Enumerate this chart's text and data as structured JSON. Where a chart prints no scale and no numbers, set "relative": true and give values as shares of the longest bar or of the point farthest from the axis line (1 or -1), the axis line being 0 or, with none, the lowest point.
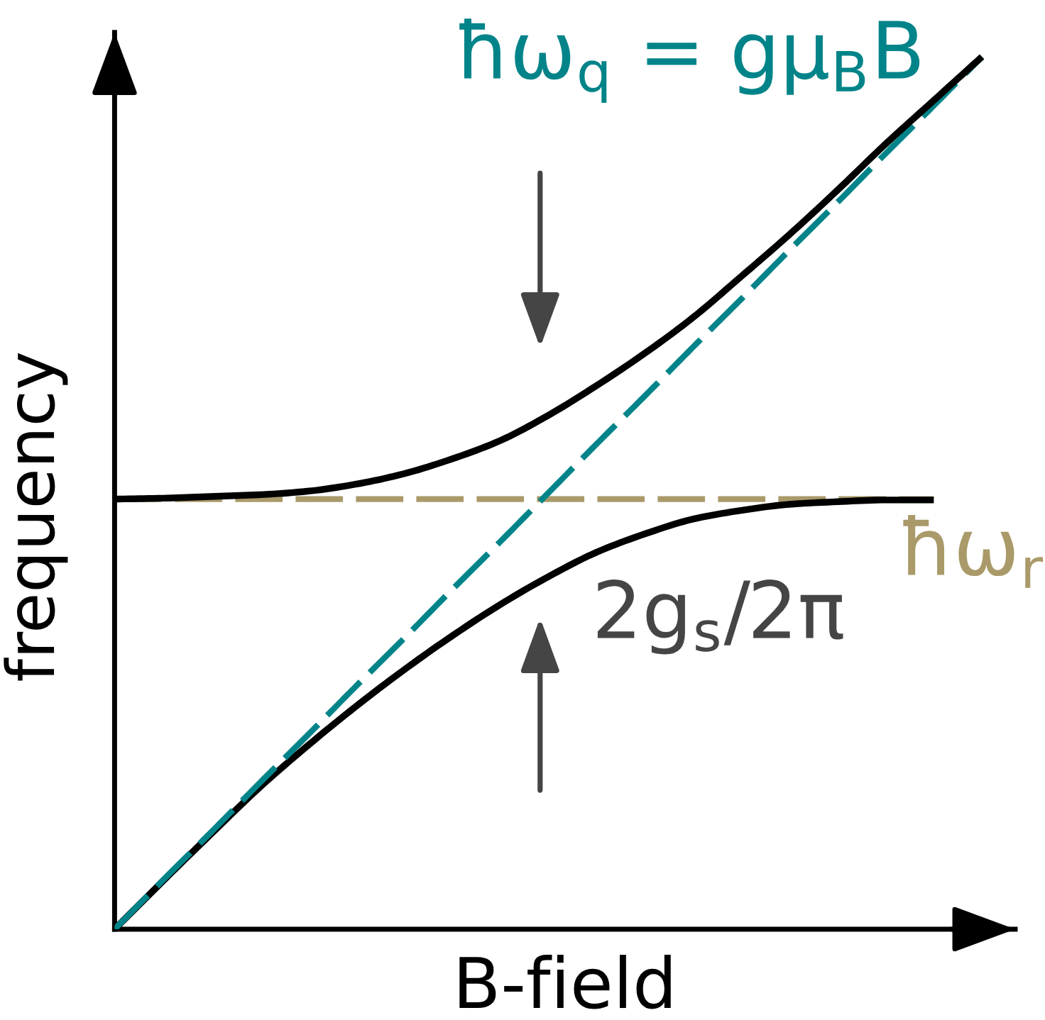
{
  "chart_data": {
    "type": "line",
    "relative": true,
    "tick_labels": false,
    "xlabel": "B-field",
    "ylabel": "frequency",
    "categories": [
      null,
      null,
      null,
      null,
      null,
      null,
      null,
      null,
      null,
      null,
      null,
      null,
      null,
      null,
      null,
      null,
      null,
      null,
      null
    ],
    "series": [
      {
        "name": "ħω$_{r}$",
        "color": "#aa9a6a",
        "line_style": "dashed",
        "values": [
          0.493,
          0.493,
          0.493,
          0.493,
          0.493,
          0.493,
          0.493,
          0.493,
          0.493,
          0.493,
          0.493,
          0.493,
          0.493,
          0.493,
          0.493,
          0.493,
          0.493,
          0.493,
          null
        ]
      },
      {
        "color": "#000000",
        "line_style": "solid",
        "values": [
          0,
          0.055,
          0.109,
          0.162,
          0.21,
          0.255,
          0.297,
          0.336,
          0.372,
          0.404,
          0.432,
          0.453,
          0.47,
          0.48,
          0.487,
          0.49,
          0.492,
          0.492,
          null
        ]
      },
      {
        "name": "ħω$_{q}$ = gμ$_{B}$B",
        "color": "#008489",
        "line_style": "dashed",
        "values": [
          0,
          0.056,
          0.111,
          0.167,
          0.222,
          0.278,
          0.333,
          0.389,
          0.444,
          0.5,
          0.556,
          0.611,
          0.667,
          0.722,
          0.778,
          0.833,
          0.889,
          0.944,
          1.0
        ]
      },
      {
        "color": "#000000",
        "line_style": "solid",
        "values": [
          0.493,
          0.494,
          0.496,
          0.498,
          0.502,
          0.51,
          0.522,
          0.539,
          0.56,
          0.589,
          0.623,
          0.66,
          0.701,
          0.748,
          0.796,
          0.847,
          0.9,
          0.95,
          1.0
        ]
      }
    ],
    "annotations": [
      "2g$_{s}$/2π"
    ]
  }
}
